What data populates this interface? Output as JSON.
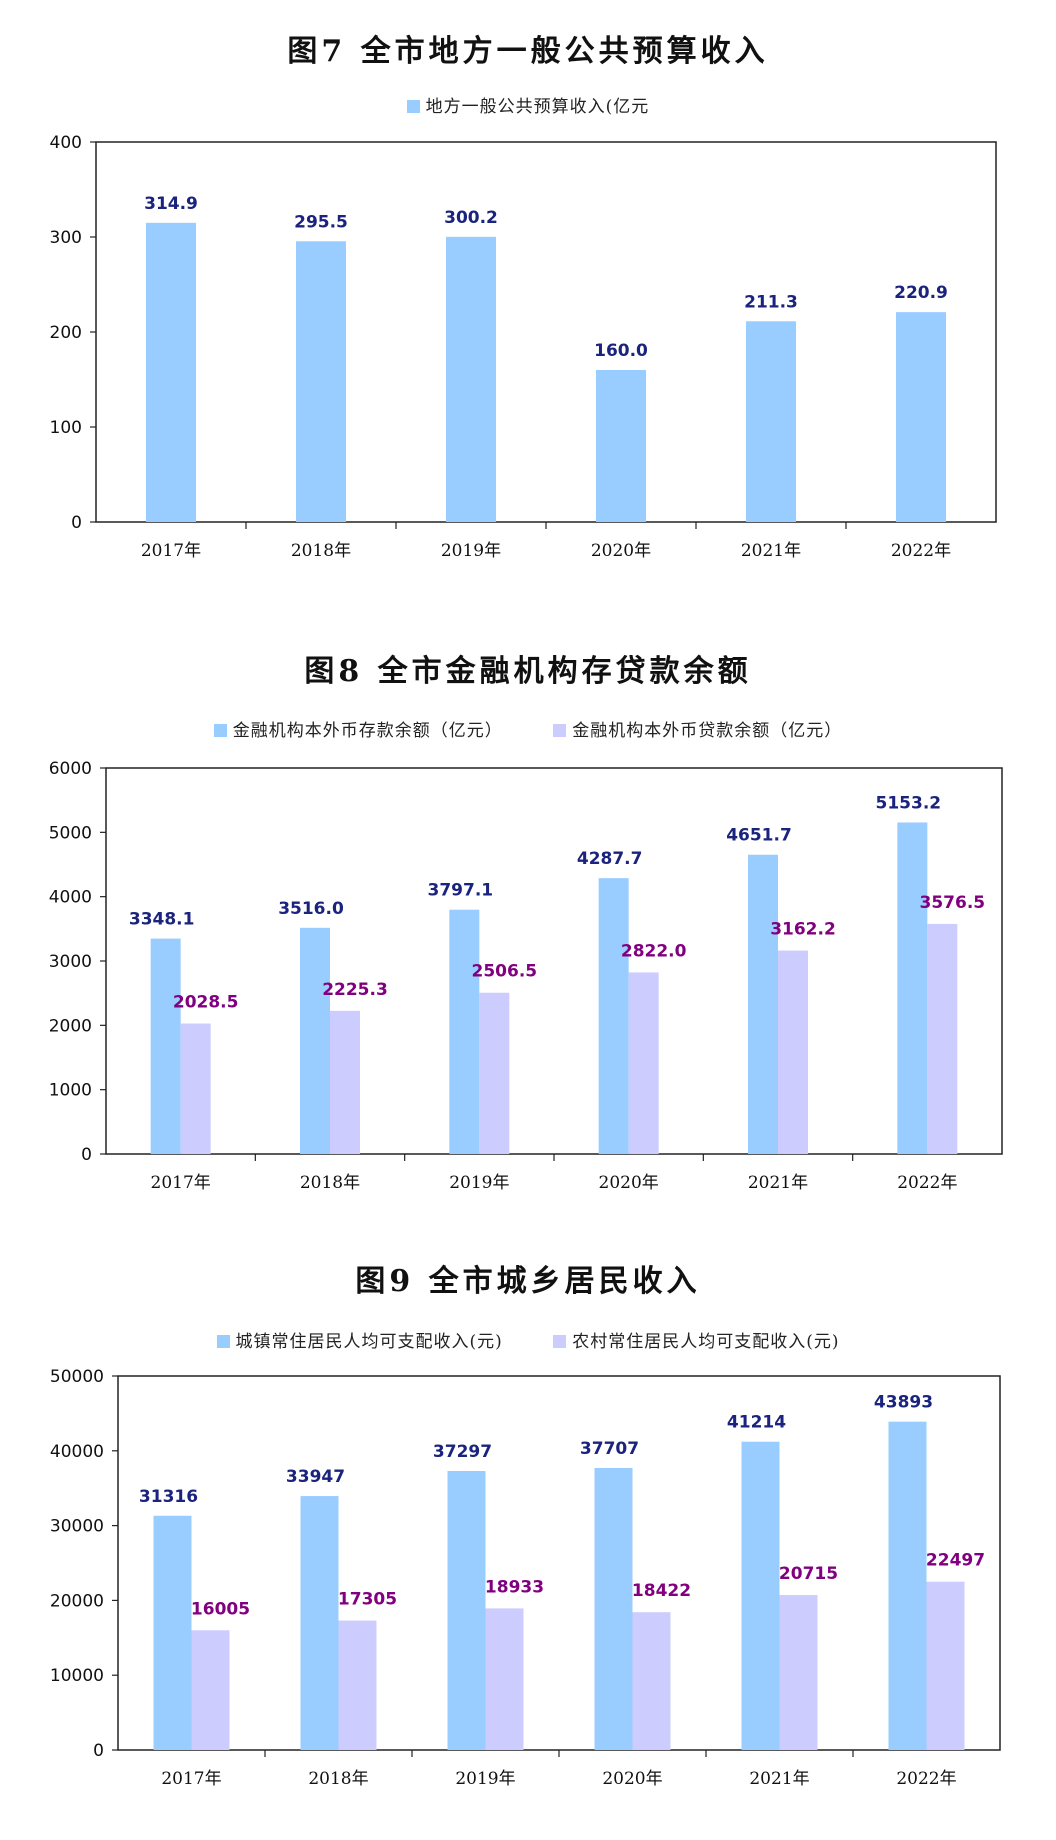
{
  "chart_data": [
    {
      "type": "bar",
      "title": "图7 全市地方一般公共预算收入",
      "categories": [
        "2017年",
        "2018年",
        "2019年",
        "2020年",
        "2021年",
        "2022年"
      ],
      "series": [
        {
          "name": "地方一般公共预算收入(亿元",
          "values": [
            314.9,
            295.5,
            300.2,
            160.0,
            211.3,
            220.9
          ],
          "labels": [
            "314.9",
            "295.5",
            "300.2",
            "160.0",
            "211.3",
            "220.9"
          ],
          "color": "#99ccff",
          "label_color": "#1a237e"
        }
      ],
      "ylim": [
        0,
        400
      ],
      "yticks": [
        "0",
        "100",
        "200",
        "300",
        "400"
      ],
      "xlabel": "",
      "ylabel": "",
      "legend": "top-center",
      "grid": false
    },
    {
      "type": "bar",
      "title": "图8 全市金融机构存贷款余额",
      "categories": [
        "2017年",
        "2018年",
        "2019年",
        "2020年",
        "2021年",
        "2022年"
      ],
      "series": [
        {
          "name": "金融机构本外币存款余额（亿元）",
          "values": [
            3348.1,
            3516.0,
            3797.1,
            4287.7,
            4651.7,
            5153.2
          ],
          "labels": [
            "3348.1",
            "3516.0",
            "3797.1",
            "4287.7",
            "4651.7",
            "5153.2"
          ],
          "color": "#99ccff",
          "label_color": "#1a237e"
        },
        {
          "name": "金融机构本外币贷款余额（亿元）",
          "values": [
            2028.5,
            2225.3,
            2506.5,
            2822.0,
            3162.2,
            3576.5
          ],
          "labels": [
            "2028.5",
            "2225.3",
            "2506.5",
            "2822.0",
            "3162.2",
            "3576.5"
          ],
          "color": "#ccccff",
          "label_color": "#800080"
        }
      ],
      "ylim": [
        0,
        6000
      ],
      "yticks": [
        "0",
        "1000",
        "2000",
        "3000",
        "4000",
        "5000",
        "6000"
      ],
      "xlabel": "",
      "ylabel": "",
      "legend": "top-center",
      "grid": false
    },
    {
      "type": "bar",
      "title": "图9 全市城乡居民收入",
      "categories": [
        "2017年",
        "2018年",
        "2019年",
        "2020年",
        "2021年",
        "2022年"
      ],
      "series": [
        {
          "name": "城镇常住居民人均可支配收入(元)",
          "values": [
            31316,
            33947,
            37297,
            37707,
            41214,
            43893
          ],
          "labels": [
            "31316",
            "33947",
            "37297",
            "37707",
            "41214",
            "43893"
          ],
          "color": "#99ccff",
          "label_color": "#1a237e"
        },
        {
          "name": "农村常住居民人均可支配收入(元)",
          "values": [
            16005,
            17305,
            18933,
            18422,
            20715,
            22497
          ],
          "labels": [
            "16005",
            "17305",
            "18933",
            "18422",
            "20715",
            "22497"
          ],
          "color": "#ccccff",
          "label_color": "#800080"
        }
      ],
      "ylim": [
        0,
        50000
      ],
      "yticks": [
        "0",
        "10000",
        "20000",
        "30000",
        "40000",
        "50000"
      ],
      "xlabel": "",
      "ylabel": "",
      "legend": "top-center",
      "grid": false
    }
  ]
}
